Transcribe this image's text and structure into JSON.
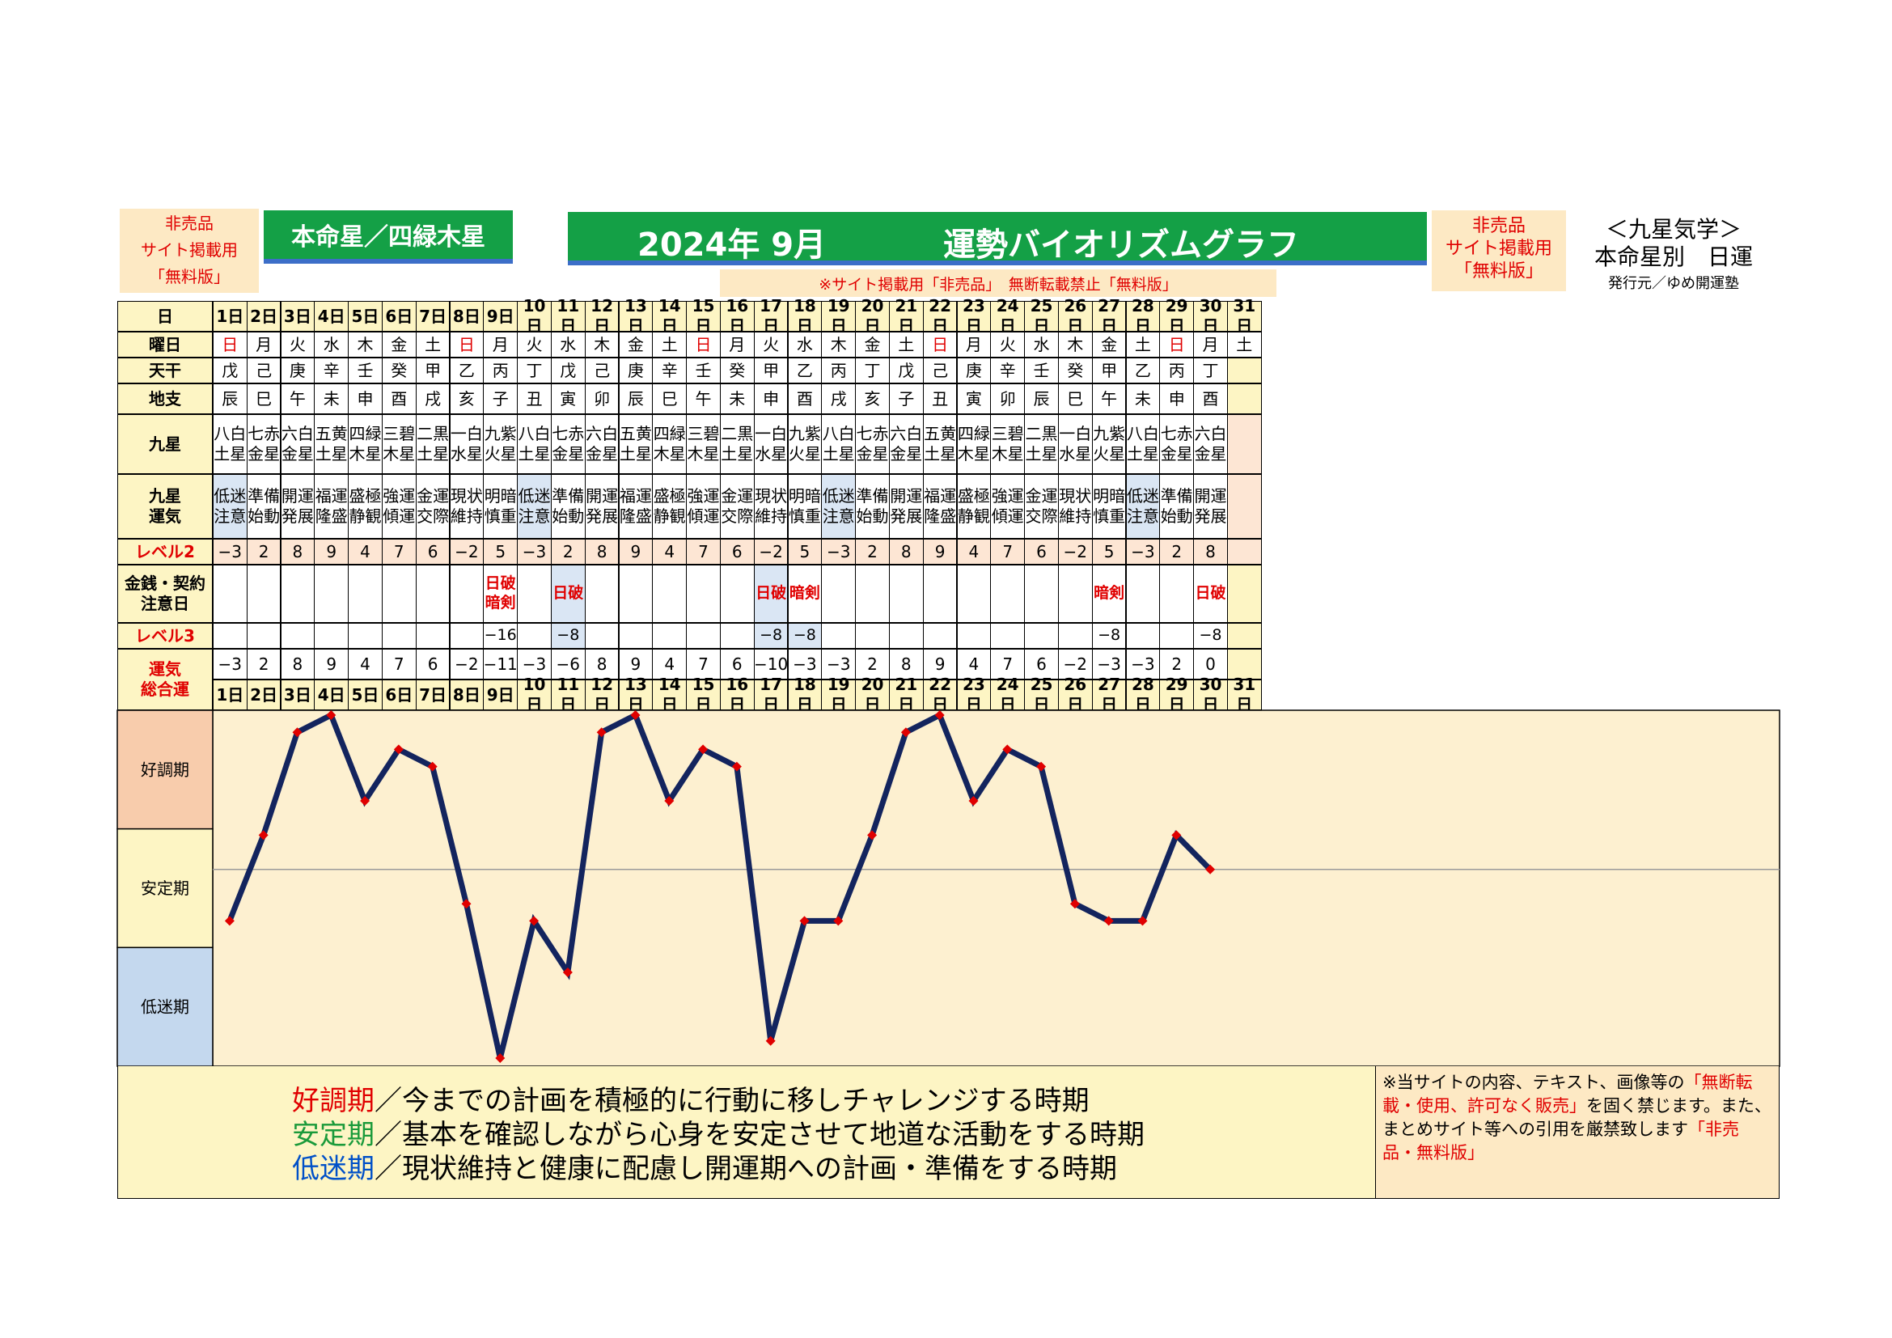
{
  "header": {
    "left_note": [
      "非売品",
      "サイト掲載用",
      "「無料版」"
    ],
    "star_label": "本命星／四緑木星",
    "year_month": "2024年 9月",
    "graph_title": "運勢バイオリズムグラフ",
    "right_note": [
      "非売品",
      "サイト掲載用",
      "「無料版」"
    ],
    "kyusei_title": "＜九星気学＞",
    "kyusei_sub": "本命星別　日運",
    "publisher": "発行元／ゆめ開運塾",
    "warning": "※サイト掲載用「非売品」　無断転載禁止「無料版」"
  },
  "row_labels": {
    "day": "日",
    "weekday": "曜日",
    "tenkan": "天干",
    "chishi": "地支",
    "kyusei": "九星",
    "unki": "九星\n運気",
    "level2": "レベル2",
    "money": "金銭・契約\n注意日",
    "level3": "レベル3",
    "total": "運気\n総合運"
  },
  "days": [
    "1日",
    "2日",
    "3日",
    "4日",
    "5日",
    "6日",
    "7日",
    "8日",
    "9日",
    "10日",
    "11日",
    "12日",
    "13日",
    "14日",
    "15日",
    "16日",
    "17日",
    "18日",
    "19日",
    "20日",
    "21日",
    "22日",
    "23日",
    "24日",
    "25日",
    "26日",
    "27日",
    "28日",
    "29日",
    "30日",
    "31日"
  ],
  "weekdays": [
    "日",
    "月",
    "火",
    "水",
    "木",
    "金",
    "土",
    "日",
    "月",
    "火",
    "水",
    "木",
    "金",
    "土",
    "日",
    "月",
    "火",
    "水",
    "木",
    "金",
    "土",
    "日",
    "月",
    "火",
    "水",
    "木",
    "金",
    "土",
    "日",
    "月",
    "土"
  ],
  "tenkan": [
    "戊",
    "己",
    "庚",
    "辛",
    "壬",
    "癸",
    "甲",
    "乙",
    "丙",
    "丁",
    "戊",
    "己",
    "庚",
    "辛",
    "壬",
    "癸",
    "甲",
    "乙",
    "丙",
    "丁",
    "戊",
    "己",
    "庚",
    "辛",
    "壬",
    "癸",
    "甲",
    "乙",
    "丙",
    "丁",
    ""
  ],
  "chishi": [
    "辰",
    "巳",
    "午",
    "未",
    "申",
    "酉",
    "戌",
    "亥",
    "子",
    "丑",
    "寅",
    "卯",
    "辰",
    "巳",
    "午",
    "未",
    "申",
    "酉",
    "戌",
    "亥",
    "子",
    "丑",
    "寅",
    "卯",
    "辰",
    "巳",
    "午",
    "未",
    "申",
    "酉",
    ""
  ],
  "kyusei": [
    "八白\n土星",
    "七赤\n金星",
    "六白\n金星",
    "五黄\n土星",
    "四緑\n木星",
    "三碧\n木星",
    "二黒\n土星",
    "一白\n水星",
    "九紫\n火星",
    "八白\n土星",
    "七赤\n金星",
    "六白\n金星",
    "五黄\n土星",
    "四緑\n木星",
    "三碧\n木星",
    "二黒\n土星",
    "一白\n水星",
    "九紫\n火星",
    "八白\n土星",
    "七赤\n金星",
    "六白\n金星",
    "五黄\n土星",
    "四緑\n木星",
    "三碧\n木星",
    "二黒\n土星",
    "一白\n水星",
    "九紫\n火星",
    "八白\n土星",
    "七赤\n金星",
    "六白\n金星",
    ""
  ],
  "unki": [
    "低迷\n注意",
    "準備\n始動",
    "開運\n発展",
    "福運\n隆盛",
    "盛極\n静観",
    "強運\n傾運",
    "金運\n交際",
    "現状\n維持",
    "明暗\n慎重",
    "低迷\n注意",
    "準備\n始動",
    "開運\n発展",
    "福運\n隆盛",
    "盛極\n静観",
    "強運\n傾運",
    "金運\n交際",
    "現状\n維持",
    "明暗\n慎重",
    "低迷\n注意",
    "準備\n始動",
    "開運\n発展",
    "福運\n隆盛",
    "盛極\n静観",
    "強運\n傾運",
    "金運\n交際",
    "現状\n維持",
    "明暗\n慎重",
    "低迷\n注意",
    "準備\n始動",
    "開運\n発展",
    ""
  ],
  "level2": [
    "−3",
    "2",
    "8",
    "9",
    "4",
    "7",
    "6",
    "−2",
    "5",
    "−3",
    "2",
    "8",
    "9",
    "4",
    "7",
    "6",
    "−2",
    "5",
    "−3",
    "2",
    "8",
    "9",
    "4",
    "7",
    "6",
    "−2",
    "5",
    "−3",
    "2",
    "8",
    ""
  ],
  "money": [
    "",
    "",
    "",
    "",
    "",
    "",
    "",
    "",
    "日破\n暗剣",
    "",
    "日破",
    "",
    "",
    "",
    "",
    "",
    "日破",
    "暗剣",
    "",
    "",
    "",
    "",
    "",
    "",
    "",
    "",
    "暗剣",
    "",
    "",
    "日破",
    ""
  ],
  "level3": [
    "",
    "",
    "",
    "",
    "",
    "",
    "",
    "",
    "−16",
    "",
    "−8",
    "",
    "",
    "",
    "",
    "",
    "−8",
    "−8",
    "",
    "",
    "",
    "",
    "",
    "",
    "",
    "",
    "−8",
    "",
    "",
    "−8",
    ""
  ],
  "total": [
    "−3",
    "2",
    "8",
    "9",
    "4",
    "7",
    "6",
    "−2",
    "−11",
    "−3",
    "−6",
    "8",
    "9",
    "4",
    "7",
    "6",
    "−10",
    "−3",
    "−3",
    "2",
    "8",
    "9",
    "4",
    "7",
    "6",
    "−2",
    "−3",
    "−3",
    "2",
    "0",
    ""
  ],
  "zones": [
    "好調期",
    "安定期",
    "低迷期"
  ],
  "chart_data": {
    "type": "line",
    "x": [
      1,
      2,
      3,
      4,
      5,
      6,
      7,
      8,
      9,
      10,
      11,
      12,
      13,
      14,
      15,
      16,
      17,
      18,
      19,
      20,
      21,
      22,
      23,
      24,
      25,
      26,
      27,
      28,
      29,
      30
    ],
    "series": [
      {
        "values": [
          -3,
          2,
          8,
          9,
          4,
          7,
          6,
          -2,
          -11,
          -3,
          -6,
          8,
          9,
          4,
          7,
          6,
          -10,
          -3,
          -3,
          2,
          8,
          9,
          4,
          7,
          6,
          -2,
          -3,
          -3,
          2,
          0
        ]
      }
    ],
    "ylim": [
      -11,
      9
    ],
    "reference_line": 0,
    "line_color": "#13245e",
    "marker_color": "#e00000",
    "zone_colors": [
      "#f8ccac",
      "#fdf5c4",
      "#c4d8ee"
    ]
  },
  "legend": [
    {
      "term": "好調期",
      "desc": "／今までの計画を積極的に行動に移しチャレンジする時期",
      "color": "#e00000"
    },
    {
      "term": "安定期",
      "desc": "／基本を確認しながら心身を安定させて地道な活動をする時期",
      "color": "#1a9a3a"
    },
    {
      "term": "低迷期",
      "desc": "／現状維持と健康に配慮し開運期への計画・準備をする時期",
      "color": "#0050c8"
    }
  ],
  "notice": {
    "line1": "※当サイトの内容、テキスト、画像等の",
    "red1": "「無断転載・使用、許可なく販売」",
    "line2": "を固く禁じます。また、まとめサイト等への引用を厳禁致します",
    "red2": "「非売品・無料版」"
  }
}
